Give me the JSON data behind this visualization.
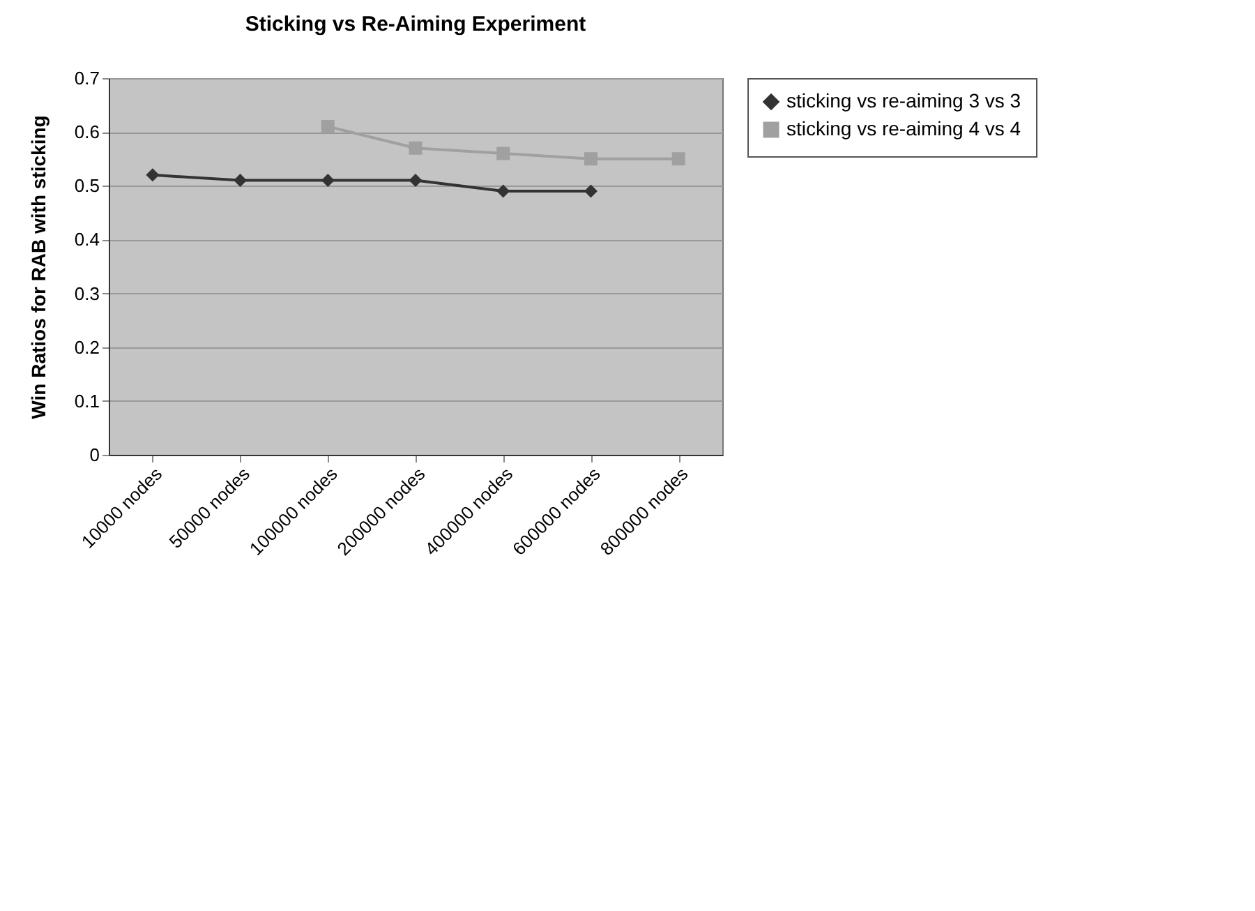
{
  "chart_data": {
    "type": "line",
    "title": "Sticking vs Re-Aiming Experiment",
    "ylabel": "Win Ratios for RAB with  sticking",
    "categories": [
      "10000 nodes",
      "50000 nodes",
      "100000 nodes",
      "200000 nodes",
      "400000 nodes",
      "600000 nodes",
      "800000 nodes"
    ],
    "series": [
      {
        "name": "sticking vs re-aiming 3 vs 3",
        "color": "#333333",
        "marker": "diamond",
        "values": [
          0.52,
          0.51,
          0.51,
          0.51,
          0.49,
          0.49,
          null
        ]
      },
      {
        "name": "sticking vs re-aiming 4 vs 4",
        "color": "#a0a0a0",
        "marker": "square",
        "values": [
          null,
          null,
          0.61,
          0.57,
          0.56,
          0.55,
          0.55
        ]
      }
    ],
    "ylim": [
      0,
      0.7
    ],
    "yticks": [
      0,
      0.1,
      0.2,
      0.3,
      0.4,
      0.5,
      0.6,
      0.7
    ],
    "grid": "y",
    "legend": "right"
  }
}
